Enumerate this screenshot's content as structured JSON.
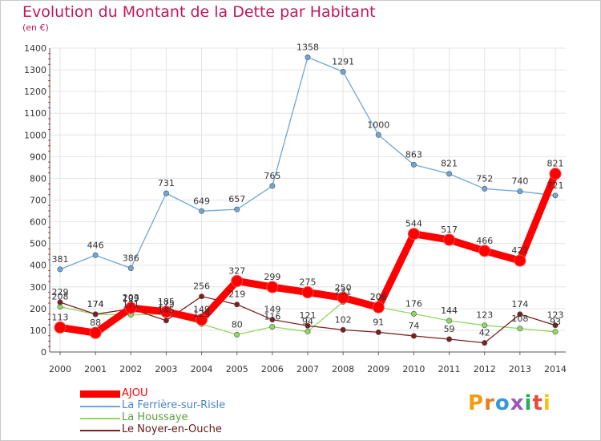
{
  "header": {
    "title": "Evolution du Montant de la Dette par Habitant",
    "subtitle": "(en €)"
  },
  "logo": {
    "text": "Proxiti",
    "colors": [
      "#f39c12",
      "#e67e22",
      "#3498db",
      "#9b59b6",
      "#27ae60",
      "#e74c3c",
      "#f1c40f"
    ]
  },
  "chart_data": {
    "type": "line",
    "title": "Evolution du Montant de la Dette par Habitant",
    "subtitle": "(en €)",
    "x": [
      "2000",
      "2001",
      "2002",
      "2003",
      "2004",
      "2005",
      "2006",
      "2007",
      "2008",
      "2009",
      "2010",
      "2011",
      "2012",
      "2013",
      "2014"
    ],
    "ylim": [
      0,
      1400
    ],
    "yticks": [
      0,
      100,
      200,
      300,
      400,
      500,
      600,
      700,
      800,
      900,
      1000,
      1100,
      1200,
      1300,
      1400
    ],
    "grid": true,
    "legend_position": "bottom-left",
    "series": [
      {
        "name": "AJOU",
        "color": "#ff0000",
        "emphasis": true,
        "values": [
          113,
          88,
          203,
          185,
          149,
          327,
          299,
          275,
          250,
          206,
          544,
          517,
          466,
          421,
          821
        ],
        "labels": [
          "113",
          "88",
          "203",
          "185",
          "149",
          "327",
          "299",
          "275",
          "250",
          "206",
          "544",
          "517",
          "466",
          "421",
          "821"
        ]
      },
      {
        "name": "La Ferrière-sur-Risle",
        "color": "#6ea6d8",
        "values": [
          381,
          446,
          386,
          731,
          649,
          657,
          765,
          1358,
          1291,
          1000,
          863,
          821,
          752,
          740,
          721
        ],
        "labels": [
          "381",
          "446",
          "386",
          "731",
          "649",
          "657",
          "765",
          "1358",
          "1291",
          "1000",
          "863",
          "821",
          "752",
          "740",
          "721"
        ]
      },
      {
        "name": "La Houssaye",
        "color": "#90d860",
        "values": [
          208,
          174,
          171,
          175,
          129,
          80,
          116,
          94,
          231,
          206,
          176,
          144,
          123,
          108,
          93
        ],
        "labels": [
          "208",
          "174",
          "171",
          "175",
          "129",
          "80",
          "116",
          "94",
          "231",
          "206",
          "176",
          "144",
          "123",
          "108",
          "93"
        ]
      },
      {
        "name": "Le Noyer-en-Ouche",
        "color": "#7a2020",
        "values": [
          229,
          174,
          199,
          145,
          256,
          219,
          149,
          121,
          102,
          91,
          74,
          59,
          42,
          174,
          123
        ],
        "labels": [
          "229",
          "174",
          "199",
          "145",
          "256",
          "219",
          "149",
          "121",
          "102",
          "91",
          "74",
          "59",
          "42",
          "174",
          "123"
        ]
      }
    ]
  }
}
